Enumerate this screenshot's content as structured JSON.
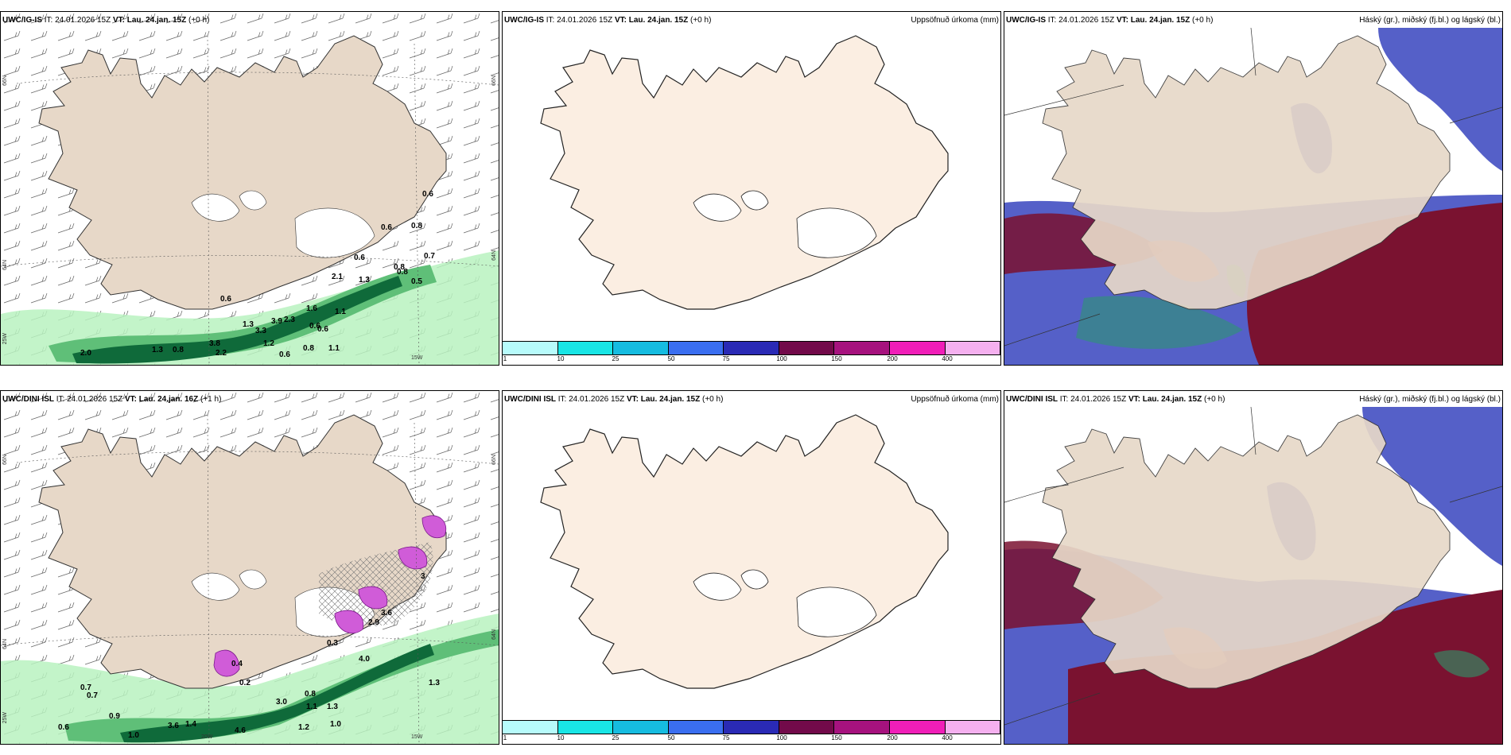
{
  "panels": {
    "top_left": {
      "model": "UWC/IG-IS",
      "it_label": "IT:",
      "it_value": "24.01.2026 15Z",
      "vt_label": "VT:",
      "vt_value": "Lau. 24.jan. 15Z",
      "lead": "(+0 h)",
      "lat_labels": [
        "66N",
        "64N",
        "25W"
      ],
      "lon_labels": [
        "15W",
        "66N",
        "64N"
      ],
      "values": [
        "0.6",
        "0.6",
        "0.8",
        "2.1",
        "0.6",
        "0.8",
        "0.8",
        "0.7",
        "1.3",
        "0.5",
        "0.6",
        "1.3",
        "1.6",
        "1.1",
        "3.9",
        "3.3",
        "2.3",
        "0.6",
        "0.6",
        "3.8",
        "1.2",
        "0.8",
        "1.1",
        "1.3",
        "0.8",
        "2.2",
        "2.0",
        "0.6"
      ]
    },
    "top_middle": {
      "model": "UWC/IG-IS",
      "it_label": "IT:",
      "it_value": "24.01.2026 15Z",
      "vt_label": "VT:",
      "vt_value": "Lau. 24.jan. 15Z",
      "lead": "(+0 h)",
      "right_title": "Uppsöfnuð úrkoma (mm)",
      "legend_ticks": [
        "1",
        "10",
        "25",
        "50",
        "75",
        "100",
        "150",
        "200",
        "400"
      ]
    },
    "top_right": {
      "model": "UWC/IG-IS",
      "it_label": "IT:",
      "it_value": "24.01.2026 15Z",
      "vt_label": "VT:",
      "vt_value": "Lau. 24.jan. 15Z",
      "lead": "(+0 h)",
      "right_title": "Háský (gr.), miðský (fj.bl.) og lágský (bl.)"
    },
    "bottom_left": {
      "model": "UWC/DINI ISL",
      "it_label": "IT:",
      "it_value": "24.01.2026 15Z",
      "vt_label": "VT:",
      "vt_value": "Lau. 24.jan. 16Z",
      "lead": "(+1 h)",
      "lat_labels": [
        "66N",
        "64N",
        "25W"
      ],
      "lon_labels": [
        "20W",
        "15W",
        "66N",
        "64N"
      ],
      "values": [
        "0.7",
        "0.7",
        "0.9",
        "0.6",
        "1.0",
        "3.6",
        "1.4",
        "4.6",
        "1.2",
        "1.0",
        "3.0",
        "0.8",
        "1.1",
        "1.3",
        "4.0",
        "1.3",
        "2.9",
        "3.6",
        "0.3",
        "3",
        "0.4",
        "0.2"
      ]
    },
    "bottom_middle": {
      "model": "UWC/DINI ISL",
      "it_label": "IT:",
      "it_value": "24.01.2026 15Z",
      "vt_label": "VT:",
      "vt_value": "Lau. 24.jan. 15Z",
      "lead": "(+0 h)",
      "right_title": "Uppsöfnuð úrkoma (mm)",
      "legend_ticks": [
        "1",
        "10",
        "25",
        "50",
        "75",
        "100",
        "150",
        "200",
        "400"
      ]
    },
    "bottom_right": {
      "model": "UWC/DINI ISL",
      "it_label": "IT:",
      "it_value": "24.01.2026 15Z",
      "vt_label": "VT:",
      "vt_value": "Lau. 24.jan. 15Z",
      "lead": "(+0 h)",
      "right_title": "Háský (gr.), miðský (fj.bl.) og lágský (bl.)"
    }
  },
  "colors": {
    "land": "#e7d8c8",
    "land_light": "#fbeee2",
    "legend": [
      "#b7fbfb",
      "#19e5e5",
      "#16bce0",
      "#3a6ef0",
      "#2a2ab5",
      "#720a4a",
      "#a6127e",
      "#f01eb8",
      "#f5b0ef"
    ],
    "cloud_high": "#2a9a6a",
    "cloud_mid": "#7a1230",
    "cloud_low": "#5560c8",
    "precip_green": "#0f6a3a"
  }
}
